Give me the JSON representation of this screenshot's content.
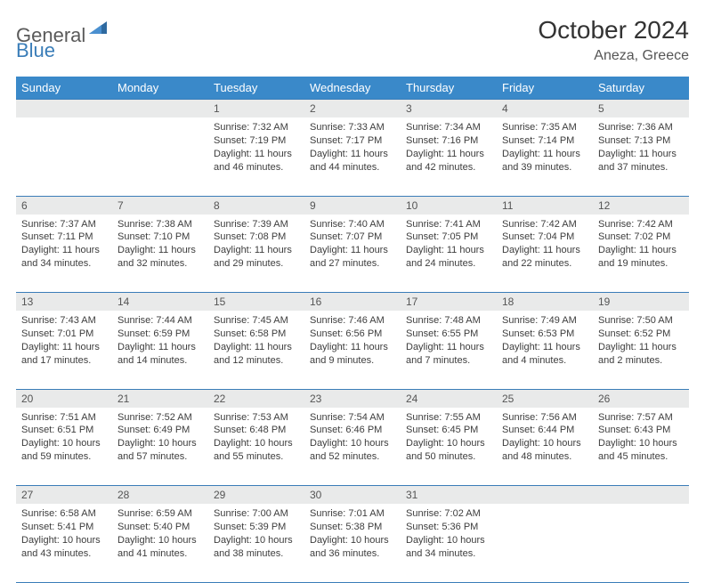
{
  "logo": {
    "general": "General",
    "blue": "Blue"
  },
  "title": "October 2024",
  "location": "Aneza, Greece",
  "weekdays": [
    "Sunday",
    "Monday",
    "Tuesday",
    "Wednesday",
    "Thursday",
    "Friday",
    "Saturday"
  ],
  "colors": {
    "header_bg": "#3a89c9",
    "header_text": "#ffffff",
    "daynum_bg": "#e9eaea",
    "border": "#3a7db8",
    "body_text": "#3d3d3d"
  },
  "weeks": [
    [
      null,
      null,
      {
        "n": "1",
        "sr": "7:32 AM",
        "ss": "7:19 PM",
        "dl": "11 hours and 46 minutes."
      },
      {
        "n": "2",
        "sr": "7:33 AM",
        "ss": "7:17 PM",
        "dl": "11 hours and 44 minutes."
      },
      {
        "n": "3",
        "sr": "7:34 AM",
        "ss": "7:16 PM",
        "dl": "11 hours and 42 minutes."
      },
      {
        "n": "4",
        "sr": "7:35 AM",
        "ss": "7:14 PM",
        "dl": "11 hours and 39 minutes."
      },
      {
        "n": "5",
        "sr": "7:36 AM",
        "ss": "7:13 PM",
        "dl": "11 hours and 37 minutes."
      }
    ],
    [
      {
        "n": "6",
        "sr": "7:37 AM",
        "ss": "7:11 PM",
        "dl": "11 hours and 34 minutes."
      },
      {
        "n": "7",
        "sr": "7:38 AM",
        "ss": "7:10 PM",
        "dl": "11 hours and 32 minutes."
      },
      {
        "n": "8",
        "sr": "7:39 AM",
        "ss": "7:08 PM",
        "dl": "11 hours and 29 minutes."
      },
      {
        "n": "9",
        "sr": "7:40 AM",
        "ss": "7:07 PM",
        "dl": "11 hours and 27 minutes."
      },
      {
        "n": "10",
        "sr": "7:41 AM",
        "ss": "7:05 PM",
        "dl": "11 hours and 24 minutes."
      },
      {
        "n": "11",
        "sr": "7:42 AM",
        "ss": "7:04 PM",
        "dl": "11 hours and 22 minutes."
      },
      {
        "n": "12",
        "sr": "7:42 AM",
        "ss": "7:02 PM",
        "dl": "11 hours and 19 minutes."
      }
    ],
    [
      {
        "n": "13",
        "sr": "7:43 AM",
        "ss": "7:01 PM",
        "dl": "11 hours and 17 minutes."
      },
      {
        "n": "14",
        "sr": "7:44 AM",
        "ss": "6:59 PM",
        "dl": "11 hours and 14 minutes."
      },
      {
        "n": "15",
        "sr": "7:45 AM",
        "ss": "6:58 PM",
        "dl": "11 hours and 12 minutes."
      },
      {
        "n": "16",
        "sr": "7:46 AM",
        "ss": "6:56 PM",
        "dl": "11 hours and 9 minutes."
      },
      {
        "n": "17",
        "sr": "7:48 AM",
        "ss": "6:55 PM",
        "dl": "11 hours and 7 minutes."
      },
      {
        "n": "18",
        "sr": "7:49 AM",
        "ss": "6:53 PM",
        "dl": "11 hours and 4 minutes."
      },
      {
        "n": "19",
        "sr": "7:50 AM",
        "ss": "6:52 PM",
        "dl": "11 hours and 2 minutes."
      }
    ],
    [
      {
        "n": "20",
        "sr": "7:51 AM",
        "ss": "6:51 PM",
        "dl": "10 hours and 59 minutes."
      },
      {
        "n": "21",
        "sr": "7:52 AM",
        "ss": "6:49 PM",
        "dl": "10 hours and 57 minutes."
      },
      {
        "n": "22",
        "sr": "7:53 AM",
        "ss": "6:48 PM",
        "dl": "10 hours and 55 minutes."
      },
      {
        "n": "23",
        "sr": "7:54 AM",
        "ss": "6:46 PM",
        "dl": "10 hours and 52 minutes."
      },
      {
        "n": "24",
        "sr": "7:55 AM",
        "ss": "6:45 PM",
        "dl": "10 hours and 50 minutes."
      },
      {
        "n": "25",
        "sr": "7:56 AM",
        "ss": "6:44 PM",
        "dl": "10 hours and 48 minutes."
      },
      {
        "n": "26",
        "sr": "7:57 AM",
        "ss": "6:43 PM",
        "dl": "10 hours and 45 minutes."
      }
    ],
    [
      {
        "n": "27",
        "sr": "6:58 AM",
        "ss": "5:41 PM",
        "dl": "10 hours and 43 minutes."
      },
      {
        "n": "28",
        "sr": "6:59 AM",
        "ss": "5:40 PM",
        "dl": "10 hours and 41 minutes."
      },
      {
        "n": "29",
        "sr": "7:00 AM",
        "ss": "5:39 PM",
        "dl": "10 hours and 38 minutes."
      },
      {
        "n": "30",
        "sr": "7:01 AM",
        "ss": "5:38 PM",
        "dl": "10 hours and 36 minutes."
      },
      {
        "n": "31",
        "sr": "7:02 AM",
        "ss": "5:36 PM",
        "dl": "10 hours and 34 minutes."
      },
      null,
      null
    ]
  ]
}
